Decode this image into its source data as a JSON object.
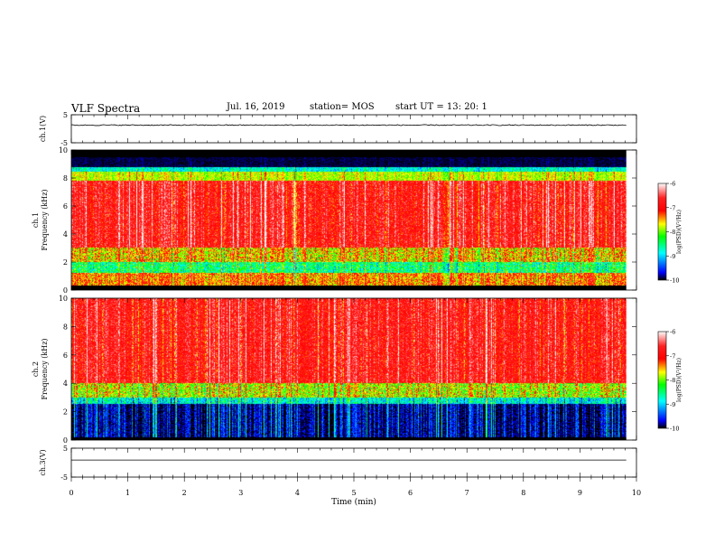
{
  "header": {
    "title": "VLF Spectra",
    "date": "Jul. 16, 2019",
    "station": "station= MOS",
    "start_ut": "start UT = 13: 20: 1"
  },
  "chart_data": [
    {
      "type": "line",
      "panel": "ch1-waveform",
      "ylabel": "ch.1(V)",
      "xlim": [
        0,
        10
      ],
      "ylim": [
        -5,
        5
      ],
      "yticks": [
        "5",
        "-5"
      ],
      "trace": "noisy flat signal near +1.5 V from 0 to 9.8 min"
    },
    {
      "type": "heatmap",
      "panel": "ch1-spectrogram",
      "ylabel": "ch.1 Frequency (kHz)",
      "xlim": [
        0,
        10
      ],
      "ylim": [
        0,
        10
      ],
      "yticks": [
        "0",
        "2",
        "4",
        "6",
        "8",
        "10"
      ],
      "colorbar": {
        "label": "log(PSD)(V²/Hz)",
        "ticks": [
          "-6",
          "-7",
          "-8",
          "-9",
          "-10"
        ],
        "range": [
          -10,
          -6
        ]
      },
      "features": "strong broadband emission ~3–7.5 kHz, cut-off above ~8.7 kHz, weaker bands near 1–2 kHz"
    },
    {
      "type": "heatmap",
      "panel": "ch2-spectrogram",
      "ylabel": "ch.2 Frequency (kHz)",
      "xlim": [
        0,
        10
      ],
      "ylim": [
        0,
        10
      ],
      "yticks": [
        "0",
        "2",
        "4",
        "6",
        "8",
        "10"
      ],
      "colorbar": {
        "label": "log(PSD)(V²/Hz)",
        "ticks": [
          "-6",
          "-7",
          "-8",
          "-9",
          "-10"
        ],
        "range": [
          -10,
          -6
        ]
      },
      "features": "strong emission ~4–10 kHz, weak below ~3 kHz with vertical spikes"
    },
    {
      "type": "line",
      "panel": "ch3-waveform",
      "ylabel": "ch.3(V)",
      "xlim": [
        0,
        10
      ],
      "ylim": [
        -5,
        5
      ],
      "yticks": [
        "5",
        "-5"
      ],
      "trace": "flat signal near +1 V from 0 to 9.8 min"
    }
  ],
  "xaxis": {
    "label": "Time (min)",
    "ticks": [
      "0",
      "1",
      "2",
      "3",
      "4",
      "5",
      "6",
      "7",
      "8",
      "9",
      "10"
    ]
  },
  "colors": {
    "cmap": [
      "#000000",
      "#0000ff",
      "#00ffff",
      "#00ff00",
      "#ffff00",
      "#ff0000",
      "#ffffff"
    ]
  }
}
